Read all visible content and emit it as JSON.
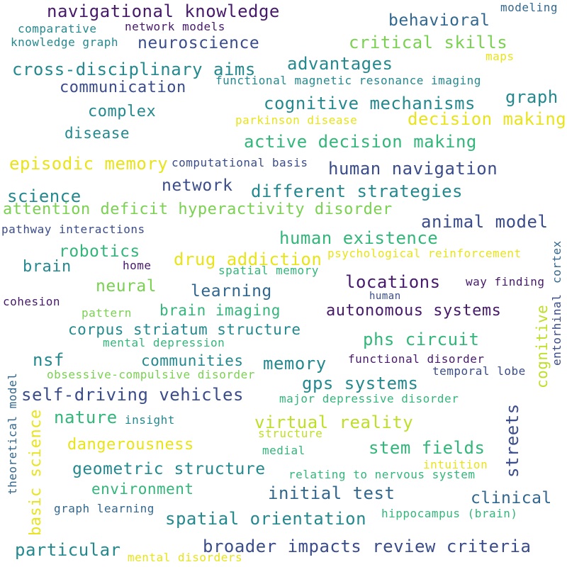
{
  "palette": {
    "deep_purple": "#46196b",
    "indigo": "#3a4c8a",
    "blue": "#31678e",
    "teal": "#23898e",
    "green": "#32b67a",
    "light_green": "#7ad151",
    "lime": "#bddf26",
    "yellow": "#e8e419"
  },
  "words": [
    {
      "text": "navigational knowledge",
      "color": "deep_purple"
    },
    {
      "text": "modeling",
      "color": "blue"
    },
    {
      "text": "behavioral",
      "color": "blue"
    },
    {
      "text": "network models",
      "color": "deep_purple"
    },
    {
      "text": "comparative",
      "color": "teal"
    },
    {
      "text": "neuroscience",
      "color": "indigo"
    },
    {
      "text": "critical skills",
      "color": "light_green"
    },
    {
      "text": "knowledge graph",
      "color": "teal"
    },
    {
      "text": "maps",
      "color": "yellow"
    },
    {
      "text": "advantages",
      "color": "teal"
    },
    {
      "text": "cross-disciplinary aims",
      "color": "teal"
    },
    {
      "text": "functional magnetic resonance imaging",
      "color": "teal"
    },
    {
      "text": "communication",
      "color": "indigo"
    },
    {
      "text": "graph",
      "color": "teal"
    },
    {
      "text": "cognitive mechanisms",
      "color": "teal"
    },
    {
      "text": "complex",
      "color": "teal"
    },
    {
      "text": "decision making",
      "color": "yellow"
    },
    {
      "text": "parkinson disease",
      "color": "yellow"
    },
    {
      "text": "disease",
      "color": "teal"
    },
    {
      "text": "active decision making",
      "color": "green"
    },
    {
      "text": "episodic memory",
      "color": "yellow"
    },
    {
      "text": "computational basis",
      "color": "indigo"
    },
    {
      "text": "human navigation",
      "color": "indigo"
    },
    {
      "text": "network",
      "color": "indigo"
    },
    {
      "text": "different strategies",
      "color": "teal"
    },
    {
      "text": "science",
      "color": "teal"
    },
    {
      "text": "attention deficit hyperactivity disorder",
      "color": "light_green"
    },
    {
      "text": "animal model",
      "color": "indigo"
    },
    {
      "text": "pathway interactions",
      "color": "indigo"
    },
    {
      "text": "human existence",
      "color": "green"
    },
    {
      "text": "robotics",
      "color": "green"
    },
    {
      "text": "drug addiction",
      "color": "yellow"
    },
    {
      "text": "psychological reinforcement",
      "color": "yellow"
    },
    {
      "text": "brain",
      "color": "teal"
    },
    {
      "text": "home",
      "color": "deep_purple"
    },
    {
      "text": "spatial memory",
      "color": "green"
    },
    {
      "text": "locations",
      "color": "deep_purple"
    },
    {
      "text": "neural",
      "color": "light_green"
    },
    {
      "text": "learning",
      "color": "blue"
    },
    {
      "text": "way finding",
      "color": "deep_purple"
    },
    {
      "text": "human",
      "color": "indigo"
    },
    {
      "text": "cohesion",
      "color": "deep_purple"
    },
    {
      "text": "autonomous systems",
      "color": "deep_purple"
    },
    {
      "text": "pattern",
      "color": "light_green"
    },
    {
      "text": "brain imaging",
      "color": "green"
    },
    {
      "text": "corpus striatum structure",
      "color": "teal"
    },
    {
      "text": "phs circuit",
      "color": "green"
    },
    {
      "text": "mental depression",
      "color": "green"
    },
    {
      "text": "nsf",
      "color": "teal"
    },
    {
      "text": "communities",
      "color": "teal"
    },
    {
      "text": "memory",
      "color": "teal"
    },
    {
      "text": "functional disorder",
      "color": "deep_purple"
    },
    {
      "text": "obsessive-compulsive disorder",
      "color": "light_green"
    },
    {
      "text": "temporal lobe",
      "color": "indigo"
    },
    {
      "text": "gps systems",
      "color": "teal"
    },
    {
      "text": "self-driving vehicles",
      "color": "indigo"
    },
    {
      "text": "major depressive disorder",
      "color": "green"
    },
    {
      "text": "nature",
      "color": "green"
    },
    {
      "text": "insight",
      "color": "teal"
    },
    {
      "text": "virtual reality",
      "color": "lime"
    },
    {
      "text": "structure",
      "color": "lime"
    },
    {
      "text": "dangerousness",
      "color": "yellow"
    },
    {
      "text": "stem fields",
      "color": "green"
    },
    {
      "text": "medial",
      "color": "green"
    },
    {
      "text": "geometric structure",
      "color": "teal"
    },
    {
      "text": "intuition",
      "color": "yellow"
    },
    {
      "text": "relating to nervous system",
      "color": "green"
    },
    {
      "text": "environment",
      "color": "green"
    },
    {
      "text": "initial test",
      "color": "blue"
    },
    {
      "text": "clinical",
      "color": "blue"
    },
    {
      "text": "graph learning",
      "color": "blue"
    },
    {
      "text": "spatial orientation",
      "color": "teal"
    },
    {
      "text": "hippocampus (brain)",
      "color": "green"
    },
    {
      "text": "particular",
      "color": "teal"
    },
    {
      "text": "broader impacts review criteria",
      "color": "indigo"
    },
    {
      "text": "mental disorders",
      "color": "yellow"
    }
  ],
  "vertical_words": [
    {
      "text": "cortex",
      "color": "blue"
    },
    {
      "text": "entorhinal",
      "color": "indigo"
    },
    {
      "text": "cognitive",
      "color": "lime"
    },
    {
      "text": "theoretical model",
      "color": "blue"
    },
    {
      "text": "basic science",
      "color": "yellow"
    },
    {
      "text": "streets",
      "color": "indigo"
    }
  ]
}
